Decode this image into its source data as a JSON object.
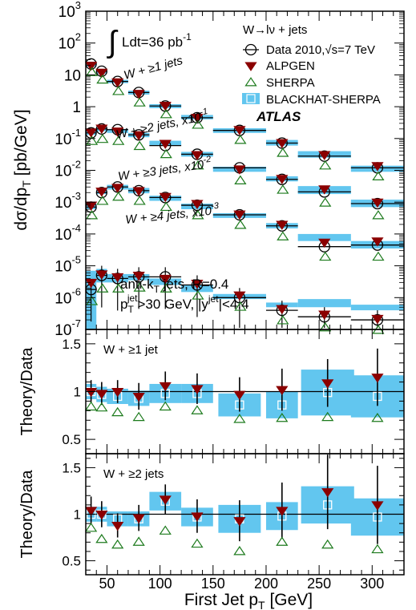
{
  "colors": {
    "band": "#62c6ef",
    "alpgen": "#8b0000",
    "sherpa": "#1c7a1c",
    "data": "#000000"
  },
  "chart_data": [
    {
      "type": "scatter",
      "log_y": true,
      "ylim": [
        1e-07,
        1000
      ],
      "xlim": [
        30,
        330
      ],
      "ylabel_main": "dσ/dp",
      "ylabel_sub": "T",
      "ylabel_tail": " [pb/GeV]",
      "y_tick_bases": [
        "10",
        "10",
        "10",
        "10",
        "10",
        "10",
        "10",
        "10",
        "10",
        "10",
        "10"
      ],
      "y_tick_exps": [
        "-7",
        "-6",
        "-5",
        "-4",
        "-3",
        "-2",
        "-1",
        "",
        "",
        "",
        ""
      ],
      "y_tick_plain": [
        "",
        "",
        "",
        "",
        "",
        "",
        "",
        "1",
        "10",
        "",
        ""
      ],
      "y_tick_vals": [
        1e-07,
        1e-06,
        1e-05,
        0.0001,
        0.001,
        0.01,
        0.1,
        1,
        10,
        100,
        1000
      ],
      "y_tick_labels": [
        {
          "b": "10",
          "e": "-7"
        },
        {
          "b": "10",
          "e": "-6"
        },
        {
          "b": "10",
          "e": "-5"
        },
        {
          "b": "10",
          "e": "-4"
        },
        {
          "b": "10",
          "e": "-3"
        },
        {
          "b": "10",
          "e": "-2"
        },
        {
          "b": "10",
          "e": "-1"
        },
        {
          "b": "1",
          "e": ""
        },
        {
          "b": "10",
          "e": ""
        },
        {
          "b": "10",
          "e": "2"
        },
        {
          "b": "10",
          "e": "3"
        }
      ],
      "lumi": {
        "int": "∫",
        "text": "Ldt=36 pb",
        "sup": "-1"
      },
      "legend": {
        "header": "W→lν + jets",
        "data_label": "Data 2010,√s=7 TeV",
        "alpgen_label": "ALPGEN",
        "sherpa_label": "SHERPA",
        "band_label": "BLACKHAT-SHERPA",
        "atlas": "ATLAS"
      },
      "series_labels": [
        {
          "text": "W + ≥1 jets",
          "x": 0,
          "y": 0
        },
        {
          "text": "W + ≥2 jets, x10",
          "sup": "-1"
        },
        {
          "text": "W + ≥3 jets, x10",
          "sup": "-2"
        },
        {
          "text": "W + ≥4 jets, x10",
          "sup": "-3"
        }
      ],
      "jet_info": {
        "line1": "anti-k",
        "line1_sub": "T",
        "line1_tail": " jets, R=0.4",
        "line2_a": "p",
        "line2_sub": "T",
        "line2_sup": "jet",
        "line2_b": ">30 GeV, |y",
        "line2_sup2": "jet",
        "line2_c": "|<4.4"
      },
      "series": [
        {
          "name": "W + ≥1 jets",
          "bins": [
            [
              30,
              40
            ],
            [
              40,
              50
            ],
            [
              50,
              70
            ],
            [
              70,
              90
            ],
            [
              90,
              120
            ],
            [
              120,
              150
            ],
            [
              150,
              200
            ],
            [
              200,
              230
            ],
            [
              230,
              280
            ],
            [
              280,
              330
            ]
          ],
          "data": [
            22,
            13,
            6.2,
            2.8,
            1.05,
            0.45,
            0.18,
            0.072,
            0.028,
            0.012
          ],
          "alpgen": [
            20,
            12,
            6.0,
            2.6,
            1.1,
            0.46,
            0.19,
            0.074,
            0.031,
            0.014
          ],
          "sherpa": [
            19,
            11,
            4.8,
            2.1,
            0.9,
            0.42,
            0.14,
            0.055,
            0.022,
            0.01
          ],
          "band": [
            [
              18,
              26
            ],
            [
              11,
              15
            ],
            [
              5.5,
              7
            ],
            [
              2.4,
              3.2
            ],
            [
              0.9,
              1.2
            ],
            [
              0.4,
              0.55
            ],
            [
              0.15,
              0.21
            ],
            [
              0.06,
              0.09
            ],
            [
              0.025,
              0.04
            ],
            [
              0.009,
              0.014
            ]
          ]
        },
        {
          "name": "W + ≥2 jets, x10",
          "bins": [
            [
              30,
              40
            ],
            [
              40,
              50
            ],
            [
              50,
              70
            ],
            [
              70,
              90
            ],
            [
              90,
              120
            ],
            [
              120,
              150
            ],
            [
              150,
              200
            ],
            [
              200,
              230
            ],
            [
              230,
              280
            ],
            [
              280,
              330
            ]
          ],
          "data": [
            0.15,
            0.2,
            0.19,
            0.13,
            0.06,
            0.032,
            0.012,
            0.0052,
            0.0021,
            0.0009
          ],
          "alpgen": [
            0.16,
            0.21,
            0.17,
            0.13,
            0.07,
            0.031,
            0.011,
            0.0055,
            0.0026,
            0.001
          ],
          "sherpa": [
            0.13,
            0.15,
            0.13,
            0.09,
            0.05,
            0.022,
            0.0075,
            0.0038,
            0.0015,
            0.0006
          ],
          "band": [
            [
              0.13,
              0.18
            ],
            [
              0.17,
              0.23
            ],
            [
              0.15,
              0.2
            ],
            [
              0.11,
              0.15
            ],
            [
              0.06,
              0.085
            ],
            [
              0.027,
              0.038
            ],
            [
              0.009,
              0.013
            ],
            [
              0.0045,
              0.0065
            ],
            [
              0.0018,
              0.0032
            ],
            [
              0.0007,
              0.0012
            ]
          ]
        },
        {
          "name": "W + ≥3 jets, x10",
          "bins": [
            [
              30,
              40
            ],
            [
              40,
              50
            ],
            [
              50,
              70
            ],
            [
              70,
              90
            ],
            [
              90,
              120
            ],
            [
              120,
              150
            ],
            [
              150,
              200
            ],
            [
              200,
              230
            ],
            [
              230,
              280
            ],
            [
              280,
              330
            ]
          ],
          "data": [
            0.0007,
            0.002,
            0.003,
            0.0023,
            0.0014,
            0.0008,
            0.0004,
            0.00018,
            4e-05,
            4.5e-05
          ],
          "alpgen": [
            0.0008,
            0.0022,
            0.0029,
            0.0023,
            0.0015,
            0.0009,
            0.00042,
            0.0002,
            5.5e-05,
            6e-05
          ],
          "sherpa": [
            0.0006,
            0.0017,
            0.0023,
            0.0017,
            0.0011,
            0.0006,
            0.0003,
            0.00013,
            3e-05,
            3e-05
          ],
          "band": [
            [
              0.0006,
              0.0009
            ],
            [
              0.0018,
              0.0026
            ],
            [
              0.0025,
              0.0035
            ],
            [
              0.0019,
              0.0028
            ],
            [
              0.0011,
              0.0016
            ],
            [
              0.0006,
              0.0009
            ],
            [
              0.00032,
              0.00045
            ],
            [
              0.00015,
              0.00022
            ],
            [
              6e-05,
              0.0001
            ],
            [
              3.5e-05,
              6e-05
            ]
          ]
        },
        {
          "name": "W + ≥4 jets, x10",
          "bins": [
            [
              30,
              40
            ],
            [
              40,
              50
            ],
            [
              50,
              70
            ],
            [
              70,
              90
            ],
            [
              90,
              120
            ],
            [
              120,
              150
            ],
            [
              150,
              200
            ],
            [
              200,
              230
            ],
            [
              230,
              280
            ],
            [
              280,
              330
            ]
          ],
          "data": [
            1.8e-06,
            5e-06,
            4e-06,
            4.5e-06,
            4.5e-06,
            2.5e-06,
            1e-06,
            4e-07,
            2.5e-07,
            2e-07
          ],
          "alpgen": [
            3e-06,
            5.5e-06,
            4.5e-06,
            5e-06,
            4e-06,
            2.8e-06,
            1.2e-06,
            4.5e-07,
            3e-07,
            2.2e-07
          ],
          "sherpa": [
            1.2e-06,
            3e-06,
            3e-06,
            3.2e-06,
            3e-06,
            1.8e-06,
            8e-07,
            3e-07,
            1.8e-07,
            1.5e-07
          ],
          "band": [
            [
              1e-07,
              7e-06
            ],
            [
              3e-06,
              8e-06
            ],
            [
              3e-06,
              5.5e-06
            ],
            [
              3.5e-06,
              5.5e-06
            ],
            [
              2.5e-06,
              4e-06
            ],
            [
              1.5e-06,
              2.5e-06
            ],
            [
              9e-07,
              1.3e-06
            ],
            [
              5e-07,
              7e-07
            ],
            [
              5e-07,
              9e-07
            ],
            [
              4e-07,
              6e-07
            ]
          ]
        }
      ]
    },
    {
      "type": "scatter",
      "label": "W + ≥1 jet",
      "ylabel": "Theory/Data",
      "ylim": [
        0.35,
        1.65
      ],
      "y_ticks": [
        "0.5",
        "1",
        "1.5"
      ],
      "x_centers": [
        35,
        45,
        60,
        80,
        105,
        135,
        175,
        215,
        258,
        305
      ],
      "x_halfwidths": [
        5,
        5,
        10,
        10,
        15,
        15,
        20,
        15,
        25,
        25
      ],
      "alpgen": [
        1.0,
        0.98,
        1.0,
        0.95,
        1.06,
        1.03,
        0.97,
        1.02,
        1.09,
        1.15
      ],
      "alpgen_err": [
        0.12,
        0.12,
        0.12,
        0.14,
        0.15,
        0.16,
        0.18,
        0.22,
        0.25,
        0.3
      ],
      "sherpa": [
        0.84,
        0.83,
        0.78,
        0.73,
        0.84,
        0.8,
        0.71,
        0.72,
        0.73,
        0.72
      ],
      "band_center": [
        1.0,
        0.97,
        0.95,
        0.93,
        0.98,
        0.98,
        0.86,
        0.86,
        0.99,
        0.95
      ],
      "band_half": [
        0.08,
        0.08,
        0.08,
        0.08,
        0.1,
        0.1,
        0.12,
        0.14,
        0.24,
        0.22
      ]
    },
    {
      "type": "scatter",
      "label": "W + ≥2 jets",
      "ylabel": "Theory/Data",
      "ylim": [
        0.35,
        1.65
      ],
      "y_ticks": [
        "0.5",
        "1",
        "1.5"
      ],
      "x_centers": [
        35,
        45,
        60,
        80,
        105,
        135,
        175,
        215,
        258,
        305
      ],
      "x_halfwidths": [
        5,
        5,
        10,
        10,
        15,
        15,
        20,
        15,
        25,
        25
      ],
      "alpgen": [
        1.04,
        1.0,
        0.88,
        0.96,
        1.16,
        0.98,
        0.93,
        1.04,
        1.24,
        1.1
      ],
      "alpgen_err": [
        0.15,
        0.14,
        0.13,
        0.14,
        0.16,
        0.18,
        0.22,
        0.3,
        0.4,
        0.42
      ],
      "sherpa": [
        0.85,
        0.73,
        0.67,
        0.7,
        0.82,
        0.68,
        0.6,
        0.7,
        0.67,
        0.62
      ],
      "band_center": [
        1.0,
        1.0,
        0.95,
        0.95,
        1.14,
        0.97,
        0.95,
        0.98,
        1.1,
        0.97
      ],
      "band_half": [
        0.08,
        0.08,
        0.08,
        0.08,
        0.1,
        0.1,
        0.15,
        0.15,
        0.2,
        0.2
      ]
    }
  ],
  "x_axis": {
    "ticks": [
      "50",
      "100",
      "150",
      "200",
      "250",
      "300"
    ],
    "tick_vals": [
      50,
      100,
      150,
      200,
      250,
      300
    ],
    "label_main": "First Jet p",
    "label_sub": "T",
    "label_tail": " [GeV]"
  }
}
